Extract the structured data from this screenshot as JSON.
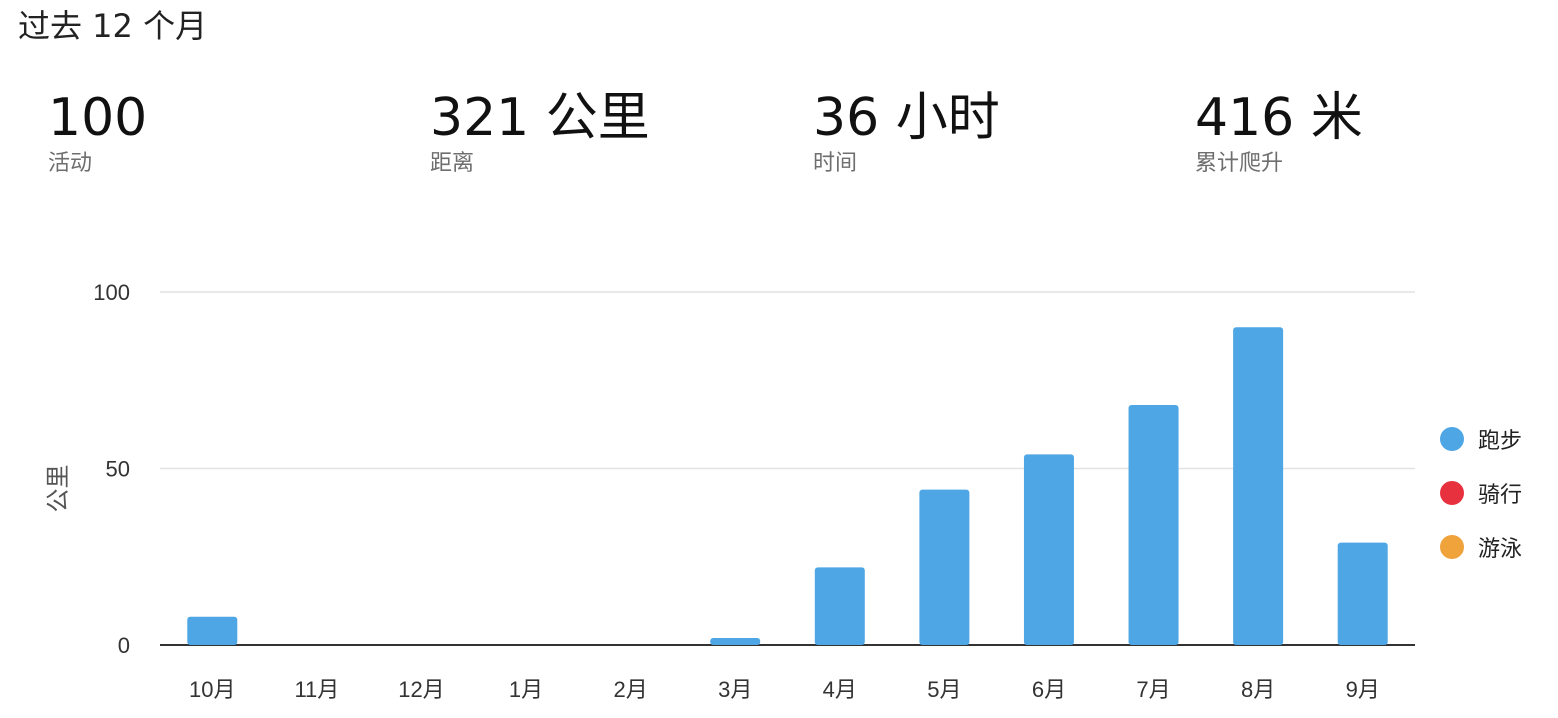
{
  "period_title": "过去 12 个月",
  "stats": [
    {
      "value": "100",
      "label": "活动"
    },
    {
      "value": "321 公里",
      "label": "距离"
    },
    {
      "value": "36 小时",
      "label": "时间"
    },
    {
      "value": "416 米",
      "label": "累计爬升"
    }
  ],
  "colors": {
    "bar": "#4ea6e5",
    "grid": "#e2e2e2",
    "axis": "#333333"
  },
  "chart_data": {
    "type": "bar",
    "title": "",
    "xlabel": "",
    "ylabel": "公里",
    "ylim": [
      0,
      100
    ],
    "yticks": [
      0,
      50,
      100
    ],
    "grid": true,
    "categories": [
      "10月",
      "11月",
      "12月",
      "1月",
      "2月",
      "3月",
      "4月",
      "5月",
      "6月",
      "7月",
      "8月",
      "9月"
    ],
    "series": [
      {
        "name": "跑步",
        "color": "#4ea6e5",
        "values": [
          8,
          0,
          0,
          0,
          0,
          2,
          22,
          44,
          54,
          68,
          90,
          29
        ]
      }
    ],
    "legend": {
      "placement": "right",
      "entries": [
        {
          "label": "跑步",
          "color": "#4ea6e5"
        },
        {
          "label": "骑行",
          "color": "#e8313f"
        },
        {
          "label": "游泳",
          "color": "#f0a23b"
        }
      ]
    }
  }
}
